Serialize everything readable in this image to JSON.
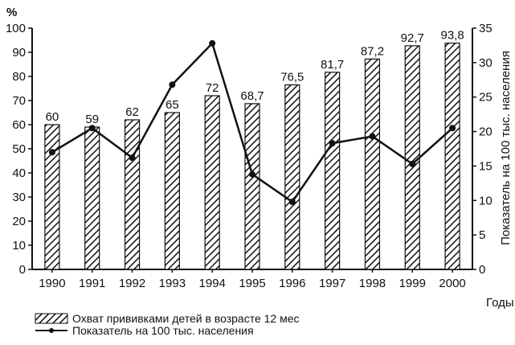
{
  "chart_data": {
    "type": "bar",
    "categories": [
      "1990",
      "1991",
      "1992",
      "1993",
      "1994",
      "1995",
      "1996",
      "1997",
      "1998",
      "1999",
      "2000"
    ],
    "series": [
      {
        "name": "Охват прививками детей в возрасте 12 мес",
        "type": "bar",
        "axis": "left",
        "values": [
          60,
          59,
          62,
          65,
          72,
          68.7,
          76.5,
          81.7,
          87.2,
          92.7,
          93.8
        ],
        "labels": [
          "60",
          "59",
          "62",
          "65",
          "72",
          "68,7",
          "76,5",
          "81,7",
          "87,2",
          "92,7",
          "93,8"
        ]
      },
      {
        "name": "Показатель на 100 тыс. населения",
        "type": "line",
        "axis": "right",
        "values": [
          17,
          20.5,
          16.2,
          26.8,
          32.8,
          13.8,
          9.8,
          18.3,
          19.3,
          15.3,
          20.5
        ]
      }
    ],
    "y_left": {
      "label": "%",
      "min": 0,
      "max": 100,
      "ticks": [
        "0",
        "10",
        "20",
        "30",
        "40",
        "50",
        "60",
        "70",
        "80",
        "90",
        "100"
      ]
    },
    "y_right": {
      "label": "Показатель на 100 тыс. населения",
      "min": 0,
      "max": 35,
      "ticks": [
        "0",
        "5",
        "10",
        "15",
        "20",
        "25",
        "30",
        "35"
      ]
    },
    "x_axis": {
      "label": "Годы"
    },
    "grid": false,
    "legend": "bottom"
  }
}
